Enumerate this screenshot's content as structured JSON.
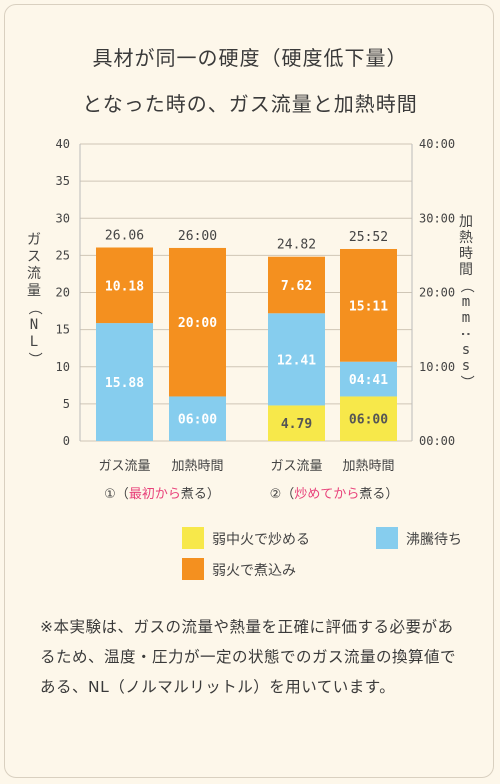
{
  "title_line1": "具材が同一の硬度（硬度低下量）",
  "title_line2": "となった時の、ガス流量と加熱時間",
  "note": "※本実験は、ガスの流量や熱量を正確に評価する必要があるため、温度・圧力が一定の状態でのガス流量の換算値である、NL（ノルマルリットル）を用いています。",
  "chart_data": {
    "type": "bar",
    "stacked": true,
    "ylabel_left": "ガス流量（NL）",
    "ylabel_right": "加熱時間（mm:ss）",
    "ylim": [
      0,
      40
    ],
    "yticks_left": [
      "0",
      "5",
      "10",
      "15",
      "20",
      "25",
      "30",
      "35",
      "40"
    ],
    "yticks_right": [
      {
        "value": 0,
        "label": "00:00"
      },
      {
        "value": 10,
        "label": "10:00"
      },
      {
        "value": 20,
        "label": "20:00"
      },
      {
        "value": 30,
        "label": "30:00"
      },
      {
        "value": 40,
        "label": "40:00"
      }
    ],
    "grid": "horizontal",
    "bars": [
      {
        "category": "ガス流量",
        "group": 1,
        "total_label": "26.06",
        "segments": [
          {
            "series": "沸騰待ち",
            "value": 15.88,
            "label": "15.88"
          },
          {
            "series": "弱火で煮込み",
            "value": 10.18,
            "label": "10.18"
          }
        ]
      },
      {
        "category": "加熱時間",
        "group": 1,
        "total_label": "26:00",
        "segments": [
          {
            "series": "沸騰待ち",
            "value": 6.0,
            "label": "06:00"
          },
          {
            "series": "弱火で煮込み",
            "value": 20.0,
            "label": "20:00"
          }
        ]
      },
      {
        "category": "ガス流量",
        "group": 2,
        "total_label": "24.82",
        "segments": [
          {
            "series": "弱中火で炒める",
            "value": 4.79,
            "label": "4.79"
          },
          {
            "series": "沸騰待ち",
            "value": 12.41,
            "label": "12.41"
          },
          {
            "series": "弱火で煮込み",
            "value": 7.62,
            "label": "7.62"
          }
        ]
      },
      {
        "category": "加熱時間",
        "group": 2,
        "total_label": "25:52",
        "segments": [
          {
            "series": "弱中火で炒める",
            "value": 6.0,
            "label": "06:00"
          },
          {
            "series": "沸騰待ち",
            "value": 4.68,
            "label": "04:41"
          },
          {
            "series": "弱火で煮込み",
            "value": 15.18,
            "label": "15:11"
          }
        ]
      }
    ],
    "groups": [
      {
        "prefix": "①（",
        "highlight": "最初から",
        "suffix": "煮る）"
      },
      {
        "prefix": "②（",
        "highlight": "炒めてから",
        "suffix": "煮る）"
      }
    ],
    "series_colors": {
      "弱中火で炒める": "#f7e84a",
      "沸騰待ち": "#86cdee",
      "弱火で煮込み": "#f4901f"
    },
    "highlight_color": "#e8417a",
    "legend": [
      {
        "label": "弱中火で炒める",
        "color": "#f7e84a"
      },
      {
        "label": "沸騰待ち",
        "color": "#86cdee"
      },
      {
        "label": "弱火で煮込み",
        "color": "#f4901f"
      }
    ]
  }
}
